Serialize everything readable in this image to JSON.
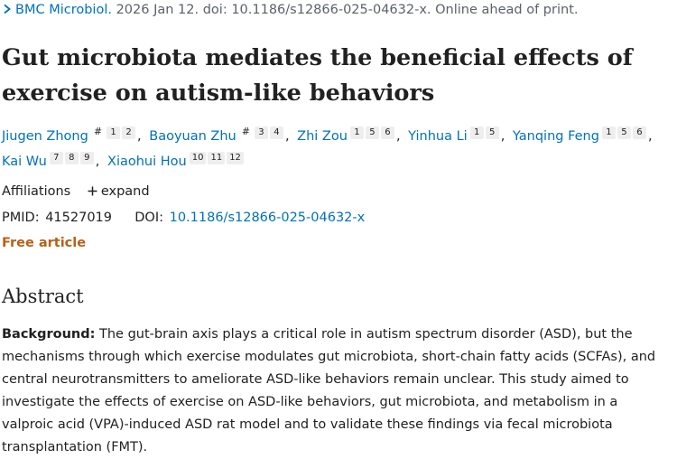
{
  "citation": {
    "journal": "BMC Microbiol.",
    "details": " 2026 Jan 12. doi: 10.1186/s12866-025-04632-x. Online ahead of print."
  },
  "title": "Gut microbiota mediates the beneficial effects of exercise on autism-like behaviors",
  "authors": [
    {
      "name": "Jiugen Zhong",
      "equal": "#",
      "affs": [
        "1",
        "2"
      ]
    },
    {
      "name": "Baoyuan Zhu",
      "equal": "#",
      "affs": [
        "3",
        "4"
      ]
    },
    {
      "name": "Zhi Zou",
      "affs": [
        "1",
        "5",
        "6"
      ]
    },
    {
      "name": "Yinhua Li",
      "affs": [
        "1",
        "5"
      ]
    },
    {
      "name": "Yanqing Feng",
      "affs": [
        "1",
        "5",
        "6"
      ]
    },
    {
      "name": "Kai Wu",
      "affs": [
        "7",
        "8",
        "9"
      ]
    },
    {
      "name": "Xiaohui Hou",
      "affs": [
        "10",
        "11",
        "12"
      ]
    }
  ],
  "affiliations": {
    "label": "Affiliations",
    "toggle": "expand"
  },
  "ids": {
    "pmid_label": "PMID:",
    "pmid": "41527019",
    "doi_label": "DOI:",
    "doi": "10.1186/s12866-025-04632-x"
  },
  "free_article": "Free article",
  "abstract": {
    "heading": "Abstract",
    "background_label": "Background:",
    "background_text": " The gut-brain axis plays a critical role in autism spectrum disorder (ASD), but the mechanisms through which exercise modulates gut microbiota, short-chain fatty acids (SCFAs), and central neurotransmitters to ameliorate ASD-like behaviors remain unclear. This study aimed to investigate the effects of exercise on ASD-like behaviors, gut microbiota, and metabolism in a valproic acid (VPA)-induced ASD rat model and to validate these findings via fecal microbiota transplantation (FMT)."
  },
  "colors": {
    "link": "#0071bc",
    "free_article": "#b56218",
    "text": "#212121",
    "muted": "#5b616b"
  },
  "icons": {
    "citation_arrow": "chevron-right-icon",
    "expand": "plus-icon"
  }
}
